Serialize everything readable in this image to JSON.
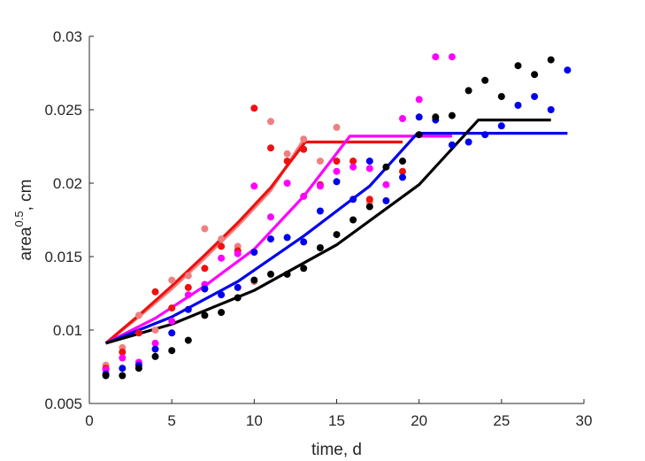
{
  "chart_data": {
    "type": "scatter",
    "xlabel": "time, d",
    "ylabel": {
      "base": "area",
      "sup": "0.5",
      "suffix": ", cm"
    },
    "xlim": [
      0,
      30
    ],
    "ylim": [
      0.005,
      0.03
    ],
    "xticks": [
      0,
      5,
      10,
      15,
      20,
      25,
      30
    ],
    "yticks": [
      0.005,
      0.01,
      0.015,
      0.02,
      0.025,
      0.03
    ],
    "xtick_labels": [
      "0",
      "5",
      "10",
      "15",
      "20",
      "25",
      "30"
    ],
    "ytick_labels": [
      "0.005",
      "0.01",
      "0.015",
      "0.02",
      "0.025",
      "0.03"
    ],
    "grid": false,
    "box": false,
    "series": [
      {
        "color": "#f08080",
        "marker": "dot",
        "points": [
          [
            1,
            0.0076
          ],
          [
            2,
            0.0088
          ],
          [
            3,
            0.011
          ],
          [
            4,
            0.01
          ],
          [
            5,
            0.0134
          ],
          [
            6,
            0.0137
          ],
          [
            7,
            0.0169
          ],
          [
            8,
            0.0162
          ],
          [
            9,
            0.0157
          ],
          [
            10,
            0.0133
          ],
          [
            11,
            0.0242
          ],
          [
            12,
            0.022
          ],
          [
            13,
            0.023
          ],
          [
            14,
            0.0215
          ],
          [
            15,
            0.0238
          ],
          [
            16,
            0.0215
          ],
          [
            17,
            0.0187
          ]
        ]
      },
      {
        "color": "#ee1111",
        "marker": "dot",
        "points": [
          [
            1,
            0.0074
          ],
          [
            2,
            0.0085
          ],
          [
            3,
            0.0098
          ],
          [
            4,
            0.0126
          ],
          [
            5,
            0.0115
          ],
          [
            6,
            0.0129
          ],
          [
            7,
            0.0142
          ],
          [
            8,
            0.0157
          ],
          [
            9,
            0.0154
          ],
          [
            10,
            0.0251
          ],
          [
            11,
            0.0224
          ],
          [
            12,
            0.0215
          ],
          [
            13,
            0.0223
          ],
          [
            14,
            0.0199
          ],
          [
            15,
            0.0215
          ],
          [
            16,
            0.0215
          ],
          [
            17,
            0.0189
          ],
          [
            19,
            0.0208
          ]
        ]
      },
      {
        "color": "#ff00ff",
        "marker": "dot",
        "points": [
          [
            1,
            0.0073
          ],
          [
            2,
            0.0081
          ],
          [
            3,
            0.0078
          ],
          [
            4,
            0.0091
          ],
          [
            5,
            0.0106
          ],
          [
            6,
            0.0124
          ],
          [
            7,
            0.0131
          ],
          [
            8,
            0.0149
          ],
          [
            9,
            0.0152
          ],
          [
            10,
            0.0198
          ],
          [
            11,
            0.0177
          ],
          [
            12,
            0.02
          ],
          [
            13,
            0.0191
          ],
          [
            14,
            0.0198
          ],
          [
            15,
            0.0208
          ],
          [
            16,
            0.0211
          ],
          [
            17,
            0.021
          ],
          [
            18,
            0.0199
          ],
          [
            19,
            0.0244
          ],
          [
            20,
            0.0257
          ],
          [
            21,
            0.0286
          ],
          [
            22,
            0.0286
          ]
        ]
      },
      {
        "color": "#0000ee",
        "marker": "dot",
        "points": [
          [
            1,
            0.007
          ],
          [
            2,
            0.0074
          ],
          [
            3,
            0.0076
          ],
          [
            4,
            0.0087
          ],
          [
            5,
            0.0098
          ],
          [
            6,
            0.0114
          ],
          [
            7,
            0.0128
          ],
          [
            8,
            0.0124
          ],
          [
            9,
            0.0129
          ],
          [
            10,
            0.0153
          ],
          [
            11,
            0.0162
          ],
          [
            12,
            0.0163
          ],
          [
            13,
            0.016
          ],
          [
            14,
            0.0181
          ],
          [
            15,
            0.0201
          ],
          [
            16,
            0.0189
          ],
          [
            17,
            0.0215
          ],
          [
            18,
            0.0188
          ],
          [
            19,
            0.0204
          ],
          [
            20,
            0.0245
          ],
          [
            21,
            0.0243
          ],
          [
            22,
            0.0226
          ],
          [
            23,
            0.0228
          ],
          [
            24,
            0.0233
          ],
          [
            25,
            0.0239
          ],
          [
            26,
            0.0253
          ],
          [
            27,
            0.0259
          ],
          [
            28,
            0.025
          ],
          [
            29,
            0.0277
          ]
        ]
      },
      {
        "color": "#000000",
        "marker": "dot",
        "points": [
          [
            1,
            0.0069
          ],
          [
            2,
            0.0069
          ],
          [
            3,
            0.0074
          ],
          [
            4,
            0.0082
          ],
          [
            5,
            0.0086
          ],
          [
            6,
            0.0093
          ],
          [
            7,
            0.011
          ],
          [
            8,
            0.0112
          ],
          [
            9,
            0.0122
          ],
          [
            10,
            0.0134
          ],
          [
            11,
            0.0138
          ],
          [
            12,
            0.0138
          ],
          [
            13,
            0.0142
          ],
          [
            14,
            0.0156
          ],
          [
            15,
            0.0165
          ],
          [
            16,
            0.0175
          ],
          [
            17,
            0.0184
          ],
          [
            18,
            0.0211
          ],
          [
            19,
            0.0215
          ],
          [
            20,
            0.0233
          ],
          [
            21,
            0.0245
          ],
          [
            22,
            0.0246
          ],
          [
            23,
            0.0263
          ],
          [
            24,
            0.027
          ],
          [
            25,
            0.0259
          ],
          [
            26,
            0.028
          ],
          [
            27,
            0.0274
          ],
          [
            28,
            0.0284
          ]
        ]
      }
    ],
    "fit_lines": [
      {
        "color": "#f08080",
        "points": [
          [
            1,
            0.0091
          ],
          [
            3,
            0.0109
          ],
          [
            5,
            0.0128
          ],
          [
            7,
            0.0149
          ],
          [
            9,
            0.0171
          ],
          [
            11,
            0.0195
          ],
          [
            12.9,
            0.0228
          ],
          [
            19,
            0.0228
          ]
        ]
      },
      {
        "color": "#ee1111",
        "points": [
          [
            1,
            0.0091
          ],
          [
            3,
            0.011
          ],
          [
            5,
            0.013
          ],
          [
            7,
            0.0151
          ],
          [
            9,
            0.0173
          ],
          [
            11,
            0.0197
          ],
          [
            13.1,
            0.0228
          ],
          [
            19,
            0.0228
          ]
        ]
      },
      {
        "color": "#ff00ff",
        "points": [
          [
            1,
            0.0091
          ],
          [
            4,
            0.0108
          ],
          [
            7,
            0.013
          ],
          [
            10,
            0.0155
          ],
          [
            13,
            0.0191
          ],
          [
            15.8,
            0.0232
          ],
          [
            22,
            0.0232
          ]
        ]
      },
      {
        "color": "#0000ee",
        "points": [
          [
            1,
            0.0091
          ],
          [
            5,
            0.0109
          ],
          [
            9,
            0.0133
          ],
          [
            13,
            0.0164
          ],
          [
            17,
            0.0198
          ],
          [
            19.9,
            0.0234
          ],
          [
            29,
            0.0234
          ]
        ]
      },
      {
        "color": "#000000",
        "points": [
          [
            1,
            0.0091
          ],
          [
            5,
            0.0104
          ],
          [
            10,
            0.0127
          ],
          [
            15,
            0.0158
          ],
          [
            20,
            0.0199
          ],
          [
            23.6,
            0.0243
          ],
          [
            28,
            0.0243
          ]
        ]
      }
    ]
  }
}
